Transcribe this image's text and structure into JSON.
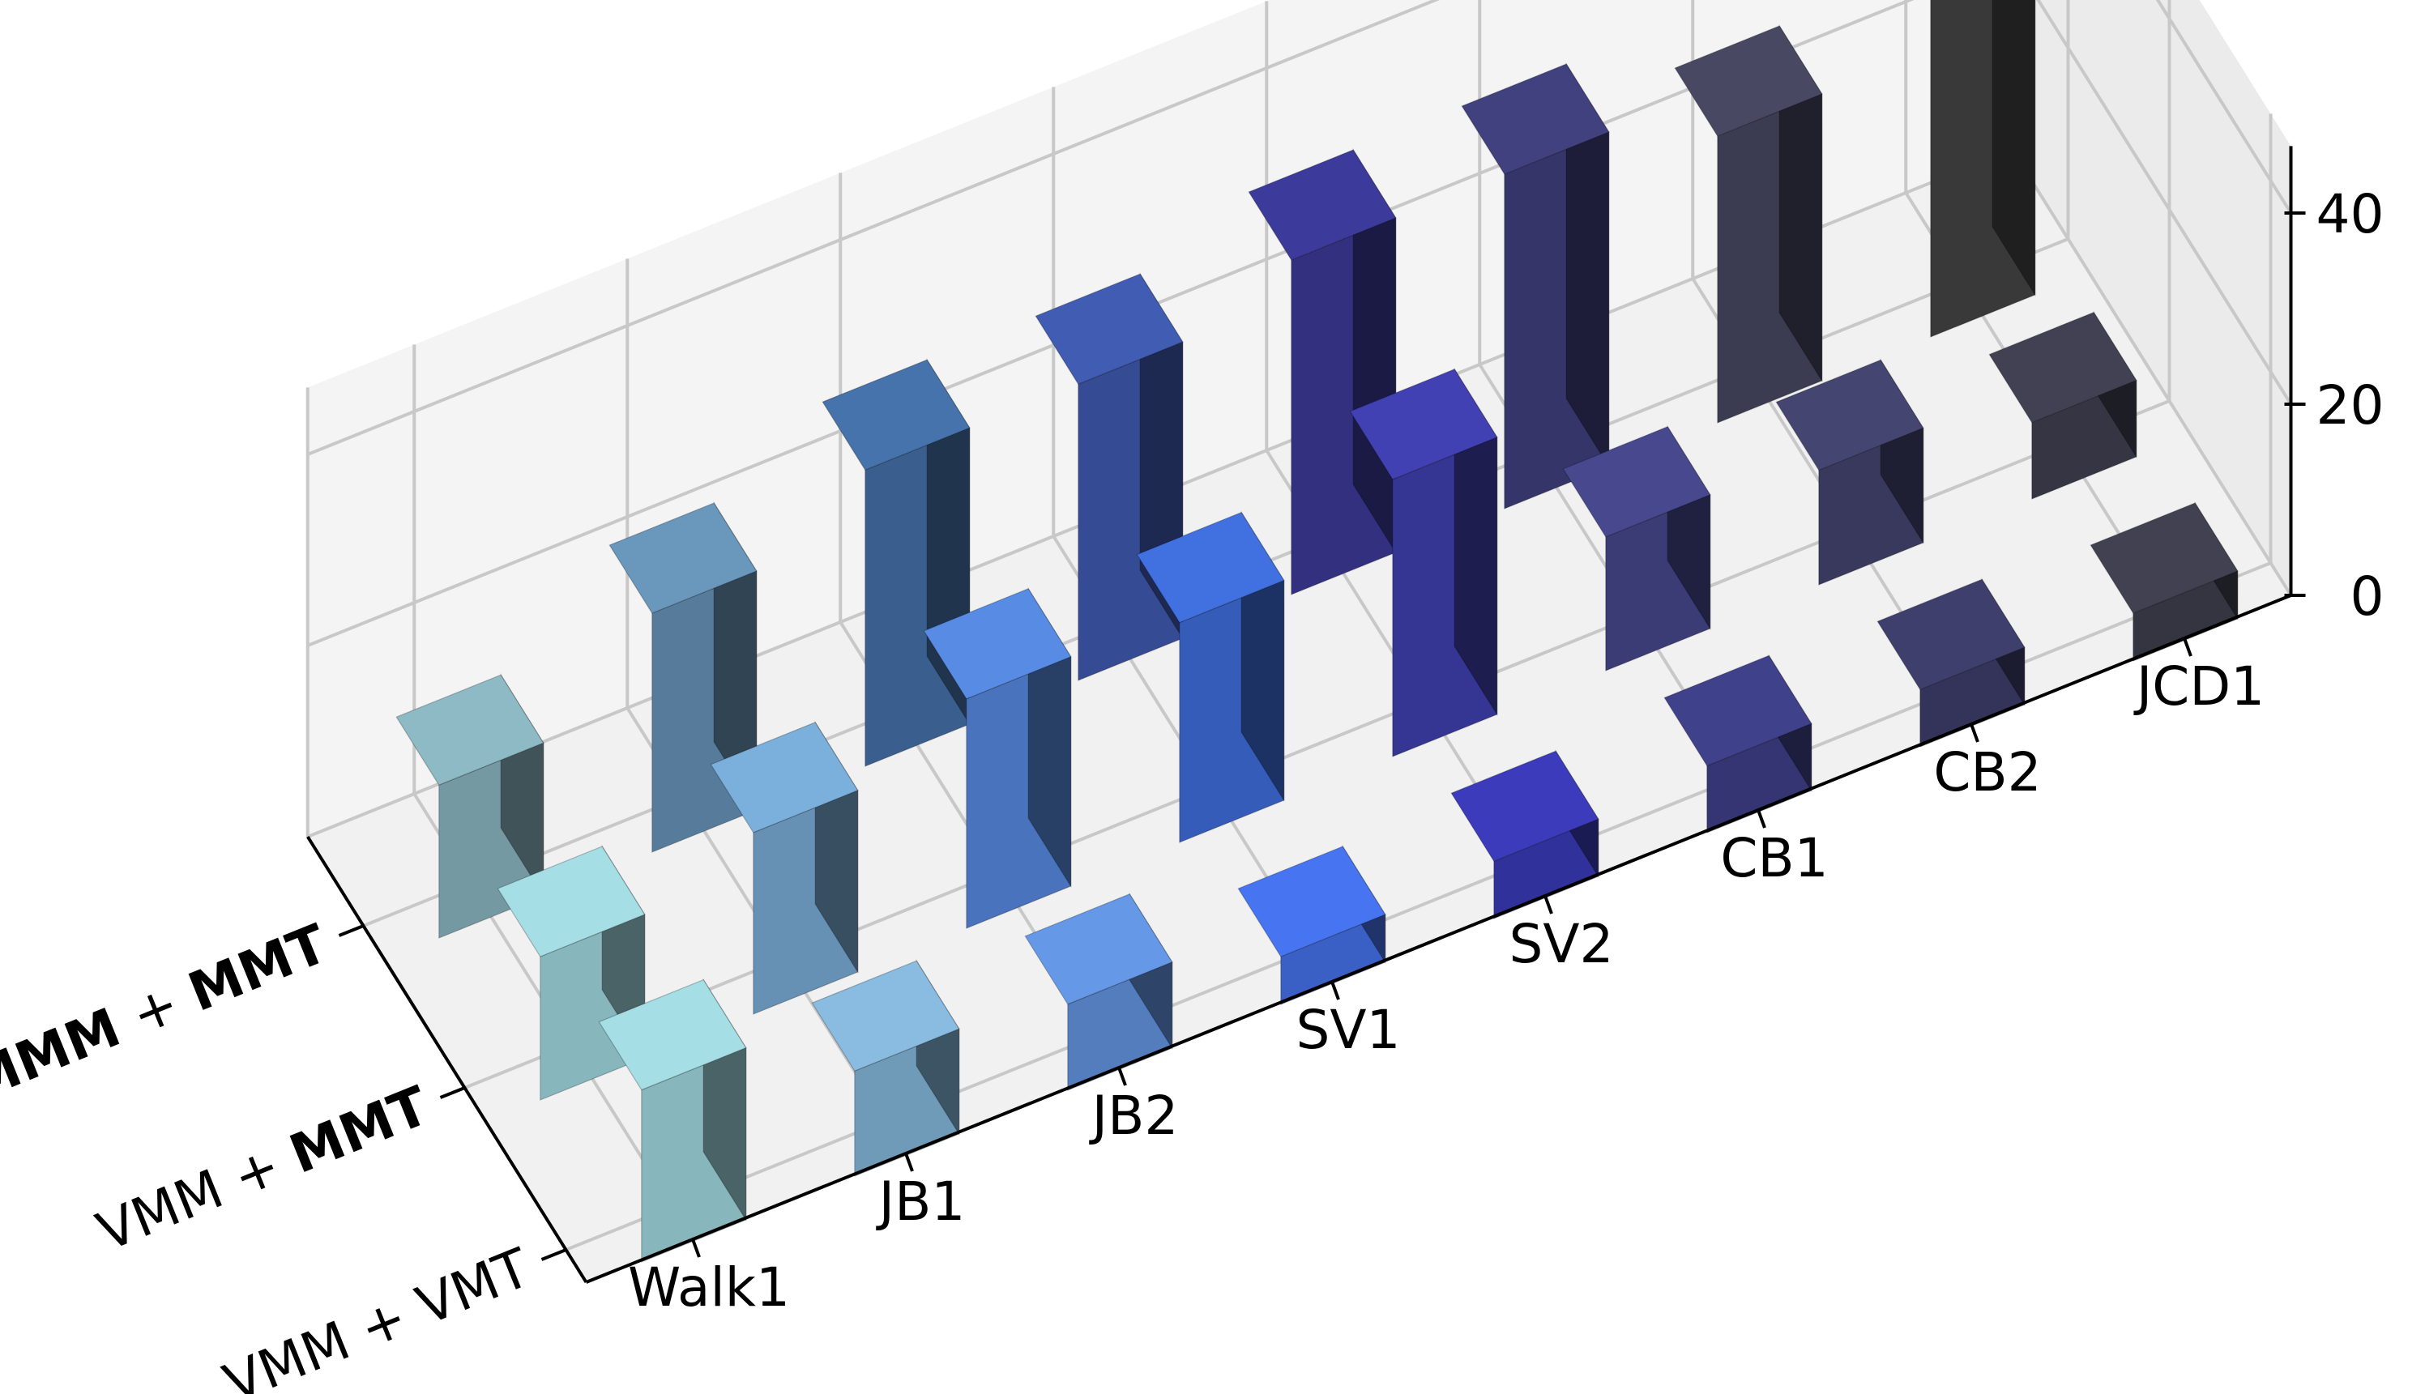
{
  "chart_data": {
    "type": "bar",
    "projection": "3d",
    "title": "",
    "xlabel": "",
    "ylabel": "",
    "zlabel": "",
    "categories": [
      "Walk1",
      "JB1",
      "JB2",
      "SV1",
      "SV2",
      "CB1",
      "CB2",
      "JCD1"
    ],
    "series": [
      {
        "name": "VMM + VMT",
        "bold": "",
        "values": [
          18,
          11,
          9,
          5,
          6,
          7,
          6,
          5
        ]
      },
      {
        "name": "VMM + MMT",
        "bold": "MMT",
        "values": [
          15,
          19,
          24,
          23,
          29,
          14,
          12,
          8
        ]
      },
      {
        "name": "MMM + MMT",
        "bold": "MMM MMT",
        "values": [
          16,
          25,
          31,
          31,
          35,
          35,
          30,
          42
        ]
      }
    ],
    "zticks": [
      0,
      20,
      40
    ],
    "zlim": [
      0,
      40
    ],
    "grid": true,
    "colors": [
      [
        "#93c6cc",
        "#7aa8c8",
        "#5b88cf",
        "#3f68d6",
        "#3535a8",
        "#393a7c",
        "#383862",
        "#3a3a48"
      ],
      [
        "#93c6cc",
        "#6f9dc4",
        "#4f7dcc",
        "#3a64c8",
        "#3a3aa0",
        "#404080",
        "#3e3e66",
        "#3a3a4a"
      ],
      [
        "#7fa6b0",
        "#5f87a8",
        "#3f679a",
        "#3a52a0",
        "#36348a",
        "#3a3a72",
        "#404058",
        "#3e3e3e"
      ]
    ]
  }
}
